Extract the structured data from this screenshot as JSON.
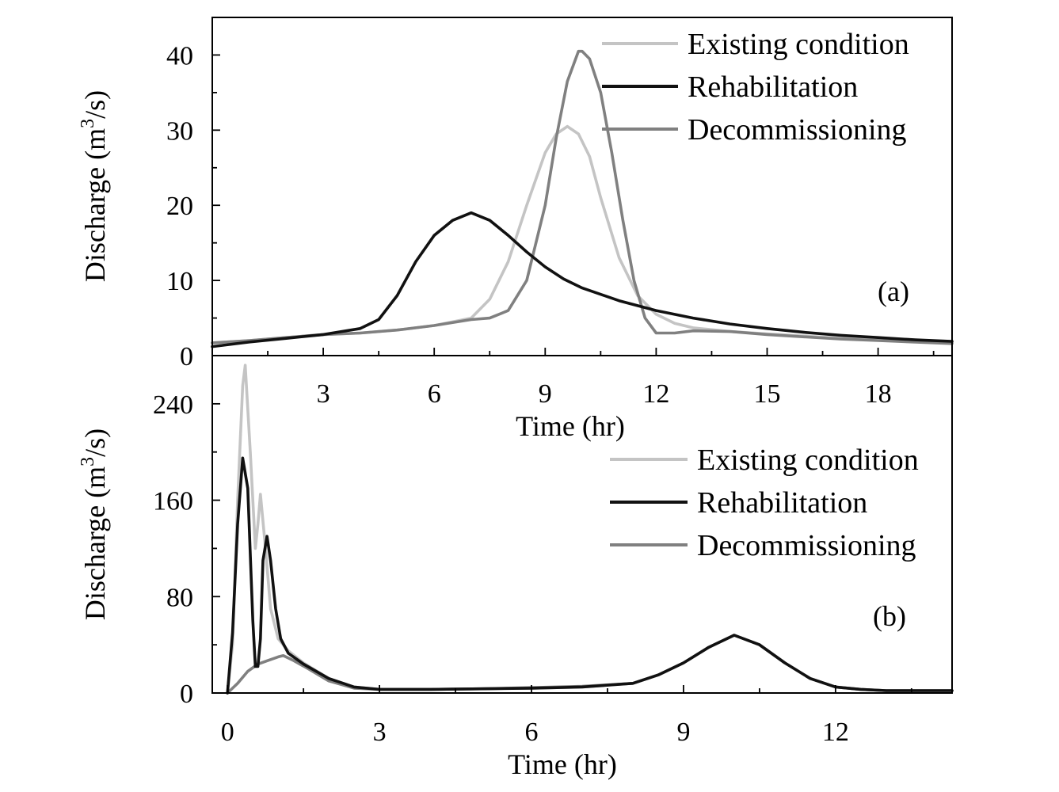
{
  "chart_data": [
    {
      "panel_label": "(a)",
      "type": "line",
      "xlabel": "Time (hr)",
      "ylabel": "Discharge (m",
      "ylabel_sup": "3",
      "ylabel_end": "/s)",
      "xlim": [
        0,
        20
      ],
      "ylim": [
        0,
        45
      ],
      "xticks": [
        3,
        6,
        9,
        12,
        15,
        18
      ],
      "yticks": [
        0,
        10,
        20,
        30,
        40
      ],
      "legend": "top-right",
      "series": [
        {
          "name": "Existing condition",
          "color": "#c4c4c4",
          "x": [
            0,
            1,
            2,
            3,
            4,
            5,
            6,
            7,
            7.5,
            8,
            8.5,
            9,
            9.3,
            9.6,
            9.9,
            10.2,
            10.5,
            11,
            11.5,
            12,
            12.5,
            13,
            14,
            15,
            16,
            17,
            18,
            19,
            20
          ],
          "y": [
            1.7,
            2.0,
            2.4,
            2.8,
            3.0,
            3.4,
            4.0,
            5.0,
            7.5,
            12.5,
            20.0,
            27.0,
            29.5,
            30.5,
            29.5,
            26.5,
            21.0,
            13.0,
            8.0,
            5.5,
            4.3,
            3.7,
            3.2,
            2.9,
            2.6,
            2.3,
            2.1,
            1.9,
            1.7
          ]
        },
        {
          "name": "Rehabilitation",
          "color": "#111111",
          "x": [
            0,
            1,
            2,
            3,
            4,
            4.5,
            5,
            5.5,
            6,
            6.5,
            7,
            7.5,
            8,
            8.5,
            9,
            9.5,
            10,
            11,
            12,
            13,
            14,
            15,
            16,
            17,
            18,
            19,
            20
          ],
          "y": [
            1.2,
            1.8,
            2.3,
            2.8,
            3.6,
            4.8,
            8.0,
            12.5,
            16.0,
            18.0,
            19.0,
            18.0,
            16.0,
            13.8,
            11.8,
            10.2,
            9.0,
            7.3,
            6.0,
            5.0,
            4.2,
            3.6,
            3.1,
            2.7,
            2.4,
            2.1,
            1.9
          ]
        },
        {
          "name": "Decommissioning",
          "color": "#808080",
          "x": [
            0,
            1,
            2,
            3,
            4,
            5,
            6,
            7,
            7.5,
            8,
            8.5,
            9,
            9.3,
            9.6,
            9.9,
            10,
            10.2,
            10.5,
            10.8,
            11.1,
            11.4,
            11.7,
            12,
            12.5,
            13,
            14,
            15,
            16,
            17,
            18,
            19,
            20
          ],
          "y": [
            1.7,
            2.0,
            2.4,
            2.8,
            3.0,
            3.4,
            4.0,
            4.8,
            5.0,
            6.0,
            10.0,
            20.0,
            29.0,
            36.5,
            40.5,
            40.5,
            39.5,
            35.0,
            27.0,
            18.0,
            10.0,
            5.0,
            3.0,
            3.0,
            3.3,
            3.2,
            2.8,
            2.5,
            2.2,
            2.0,
            1.8,
            1.6
          ]
        }
      ]
    },
    {
      "panel_label": "(b)",
      "type": "line",
      "xlabel": "Time (hr)",
      "ylabel": "Discharge (m",
      "ylabel_sup": "3",
      "ylabel_end": "/s)",
      "xlim": [
        -0.3,
        14.3
      ],
      "ylim": [
        0,
        280
      ],
      "xticks": [
        0,
        3,
        6,
        9,
        12
      ],
      "yticks": [
        0,
        80,
        160,
        240
      ],
      "legend": "top-right",
      "series": [
        {
          "name": "Existing condition",
          "color": "#c4c4c4",
          "x": [
            0,
            0.1,
            0.2,
            0.3,
            0.35,
            0.45,
            0.55,
            0.6,
            0.65,
            0.75,
            0.85,
            1.0,
            1.2,
            1.5,
            2.0,
            2.5,
            3,
            4,
            5,
            6,
            7,
            8,
            8.5,
            9,
            9.5,
            10,
            10.5,
            11,
            11.5,
            12,
            12.5,
            13,
            14,
            14.3
          ],
          "y": [
            0,
            40,
            160,
            255,
            272,
            200,
            120,
            140,
            165,
            120,
            70,
            45,
            35,
            25,
            12,
            5,
            3,
            3,
            3.5,
            4,
            5,
            8,
            15,
            25,
            38,
            48,
            40,
            25,
            12,
            5,
            3,
            2,
            2,
            2
          ]
        },
        {
          "name": "Rehabilitation",
          "color": "#111111",
          "x": [
            0,
            0.1,
            0.2,
            0.3,
            0.4,
            0.5,
            0.55,
            0.6,
            0.65,
            0.7,
            0.78,
            0.85,
            0.95,
            1.05,
            1.2,
            1.5,
            2.0,
            2.5,
            3,
            4,
            5,
            6,
            7,
            8,
            8.5,
            9,
            9.5,
            10,
            10.5,
            11,
            11.5,
            12,
            12.5,
            13,
            14,
            14.3
          ],
          "y": [
            0,
            50,
            140,
            195,
            170,
            60,
            22,
            22,
            45,
            110,
            130,
            110,
            70,
            45,
            33,
            24,
            12,
            5,
            3,
            3,
            3.5,
            4,
            5,
            8,
            15,
            25,
            38,
            48,
            40,
            25,
            12,
            5,
            3,
            2,
            2,
            2
          ]
        },
        {
          "name": "Decommissioning",
          "color": "#808080",
          "x": [
            0,
            0.2,
            0.4,
            0.6,
            0.8,
            1.0,
            1.1,
            1.3,
            1.6,
            2.0,
            2.5,
            3,
            4,
            5,
            6,
            7,
            8,
            8.5,
            9,
            9.5,
            10,
            10.5,
            11,
            11.5,
            12,
            12.5,
            13,
            14,
            14.3
          ],
          "y": [
            0,
            8,
            18,
            24,
            27,
            30,
            31,
            27,
            20,
            10,
            4,
            3,
            3,
            3.5,
            4.5,
            5.5,
            8,
            15,
            25,
            38,
            48,
            40,
            25,
            12,
            5,
            3,
            2,
            2,
            2
          ]
        }
      ]
    }
  ]
}
